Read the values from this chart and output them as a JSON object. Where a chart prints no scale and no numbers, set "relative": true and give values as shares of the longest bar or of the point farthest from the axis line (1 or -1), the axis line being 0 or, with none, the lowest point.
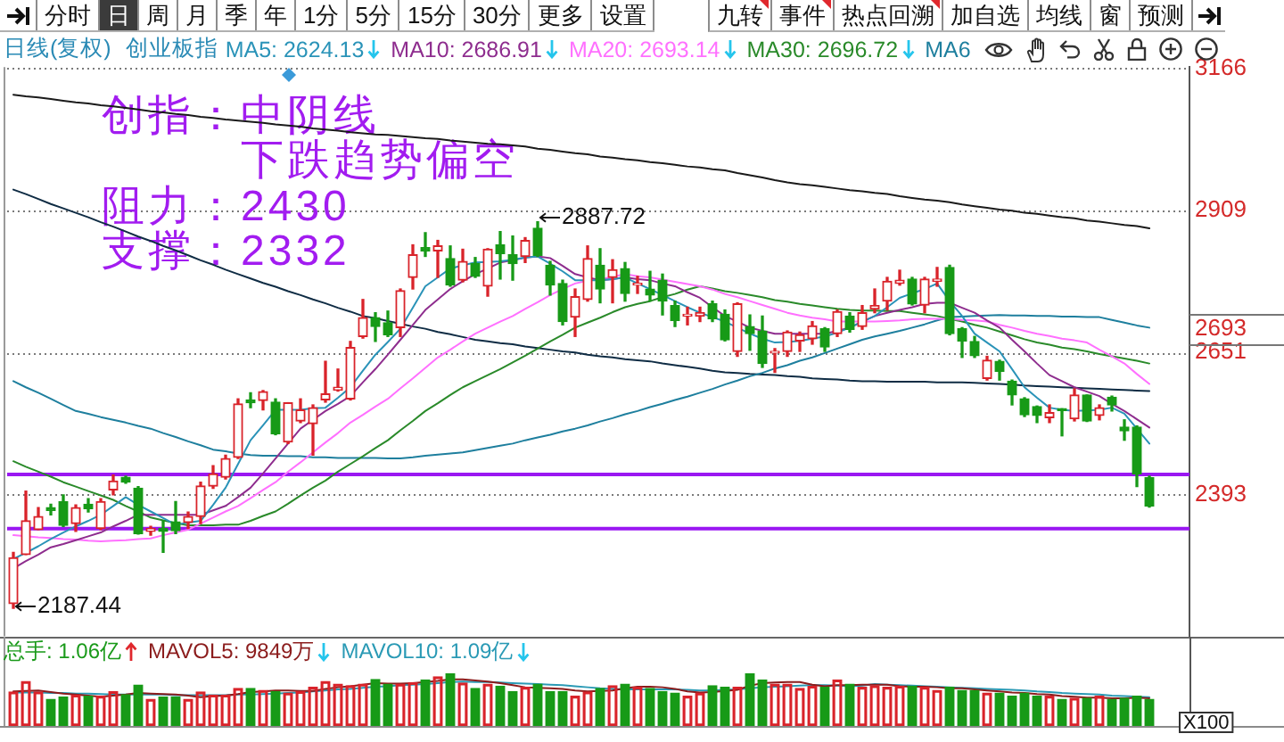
{
  "chart_data": [
    {
      "type": "candlestick",
      "title": "创业板指",
      "subtitle": "日线(复权)",
      "categories": [
        null,
        null,
        null,
        null,
        null,
        null,
        null,
        null,
        null,
        null,
        null,
        null,
        null,
        null,
        null,
        null,
        null,
        null,
        null,
        null,
        null,
        null,
        null,
        null,
        null,
        null,
        null,
        null,
        null,
        null,
        null,
        null,
        null,
        null,
        null,
        null,
        null,
        null,
        null,
        null,
        null,
        null,
        null,
        null,
        null,
        null,
        null,
        null,
        null,
        null,
        null,
        null,
        null,
        null,
        null,
        null,
        null,
        null,
        null,
        null,
        null,
        null,
        null,
        null,
        null,
        null,
        null,
        null,
        null,
        null,
        null,
        null,
        null,
        null,
        null,
        null,
        null,
        null,
        null,
        null,
        null,
        null,
        null,
        null,
        null,
        null,
        null,
        null,
        null,
        null,
        null,
        null
      ],
      "ohlc": [
        [
          2196,
          2289,
          2187.44,
          2279
        ],
        [
          2285,
          2400,
          2285,
          2346
        ],
        [
          2330,
          2370,
          2330,
          2354
        ],
        [
          2370,
          2376,
          2357,
          2365
        ],
        [
          2381,
          2393,
          2336,
          2338
        ],
        [
          2341,
          2375,
          2327,
          2370
        ],
        [
          2376,
          2386,
          2362,
          2368
        ],
        [
          2332,
          2386,
          2330,
          2381
        ],
        [
          2402,
          2429,
          2393,
          2418
        ],
        [
          2425,
          2427,
          2414,
          2416
        ],
        [
          2405,
          2408,
          2322,
          2323
        ],
        [
          2327,
          2336,
          2320,
          2332
        ],
        [
          2332,
          2346,
          2289,
          2327
        ],
        [
          2344,
          2381,
          2323,
          2328
        ],
        [
          2343,
          2362,
          2332,
          2354
        ],
        [
          2354,
          2416,
          2341,
          2409
        ],
        [
          2409,
          2446,
          2405,
          2431
        ],
        [
          2425,
          2465,
          2422,
          2459
        ],
        [
          2461,
          2567,
          2459,
          2558
        ],
        [
          2565,
          2578,
          2551,
          2560
        ],
        [
          2564,
          2582,
          2547,
          2580
        ],
        [
          2561,
          2567,
          2502,
          2504
        ],
        [
          2489,
          2560,
          2486,
          2560
        ],
        [
          2527,
          2567,
          2524,
          2547
        ],
        [
          2522,
          2556,
          2465,
          2551
        ],
        [
          2565,
          2635,
          2561,
          2576
        ],
        [
          2583,
          2621,
          2581,
          2588
        ],
        [
          2567,
          2671,
          2565,
          2660
        ],
        [
          2680,
          2747,
          2677,
          2714
        ],
        [
          2714,
          2723,
          2671,
          2698
        ],
        [
          2705,
          2726,
          2680,
          2683
        ],
        [
          2696,
          2766,
          2680,
          2763
        ],
        [
          2787,
          2846,
          2766,
          2828
        ],
        [
          2841,
          2868,
          2825,
          2835
        ],
        [
          2835,
          2854,
          2787,
          2844
        ],
        [
          2821,
          2844,
          2771,
          2773
        ],
        [
          2782,
          2838,
          2779,
          2816
        ],
        [
          2812,
          2823,
          2787,
          2789
        ],
        [
          2771,
          2839,
          2753,
          2838
        ],
        [
          2846,
          2870,
          2784,
          2830
        ],
        [
          2828,
          2862,
          2782,
          2812
        ],
        [
          2825,
          2859,
          2814,
          2854
        ],
        [
          2876,
          2887.72,
          2825,
          2827
        ],
        [
          2809,
          2816,
          2755,
          2773
        ],
        [
          2776,
          2782,
          2701,
          2707
        ],
        [
          2715,
          2766,
          2680,
          2752
        ],
        [
          2747,
          2844,
          2744,
          2821
        ],
        [
          2809,
          2839,
          2741,
          2766
        ],
        [
          2787,
          2819,
          2741,
          2801
        ],
        [
          2803,
          2814,
          2744,
          2758
        ],
        [
          2773,
          2789,
          2758,
          2776
        ],
        [
          2766,
          2798,
          2744,
          2755
        ],
        [
          2782,
          2793,
          2719,
          2744
        ],
        [
          2736,
          2744,
          2698,
          2709
        ],
        [
          2717,
          2733,
          2701,
          2719
        ],
        [
          2717,
          2733,
          2707,
          2723
        ],
        [
          2739,
          2744,
          2707,
          2712
        ],
        [
          2720,
          2728,
          2672,
          2674
        ],
        [
          2653,
          2741,
          2644,
          2739
        ],
        [
          2698,
          2719,
          2655,
          2685
        ],
        [
          2690,
          2717,
          2624,
          2631
        ],
        [
          2650,
          2658,
          2615,
          2653
        ],
        [
          2653,
          2690,
          2644,
          2688
        ],
        [
          2672,
          2688,
          2653,
          2683
        ],
        [
          2676,
          2707,
          2666,
          2699
        ],
        [
          2694,
          2696,
          2653,
          2661
        ],
        [
          2685,
          2728,
          2680,
          2725
        ],
        [
          2717,
          2723,
          2688,
          2693
        ],
        [
          2698,
          2736,
          2693,
          2723
        ],
        [
          2730,
          2766,
          2723,
          2736
        ],
        [
          2744,
          2787,
          2728,
          2780
        ],
        [
          2776,
          2800,
          2773,
          2782
        ],
        [
          2784,
          2787,
          2737,
          2739
        ],
        [
          2737,
          2787,
          2723,
          2784
        ],
        [
          2780,
          2805,
          2771,
          2784
        ],
        [
          2805,
          2809,
          2683,
          2685
        ],
        [
          2694,
          2696,
          2642,
          2672
        ],
        [
          2671,
          2680,
          2642,
          2645
        ],
        [
          2604,
          2644,
          2601,
          2637
        ],
        [
          2635,
          2637,
          2601,
          2617
        ],
        [
          2599,
          2601,
          2556,
          2574
        ],
        [
          2567,
          2569,
          2535,
          2538
        ],
        [
          2553,
          2554,
          2524,
          2537
        ],
        [
          2533,
          2556,
          2524,
          2542
        ],
        [
          2548,
          2549,
          2500,
          2546
        ],
        [
          2531,
          2585,
          2527,
          2574
        ],
        [
          2574,
          2574,
          2526,
          2527
        ],
        [
          2537,
          2556,
          2529,
          2551
        ],
        [
          2570,
          2572,
          2545,
          2556
        ],
        [
          2516,
          2529,
          2492,
          2509
        ],
        [
          2516,
          2518,
          2408,
          2431
        ],
        [
          2424,
          2427,
          2371,
          2373
        ]
      ],
      "colors": [
        "#d9232a",
        "#d9232a",
        "#d9232a",
        "#179a17",
        "#179a17",
        "#d9232a",
        "#179a17",
        "#d9232a",
        "#d9232a",
        "#179a17",
        "#179a17",
        "#d9232a",
        "#179a17",
        "#179a17",
        "#d9232a",
        "#d9232a",
        "#d9232a",
        "#d9232a",
        "#d9232a",
        "#179a17",
        "#d9232a",
        "#179a17",
        "#d9232a",
        "#d9232a",
        "#d9232a",
        "#d9232a",
        "#d9232a",
        "#d9232a",
        "#d9232a",
        "#179a17",
        "#179a17",
        "#d9232a",
        "#d9232a",
        "#179a17",
        "#d9232a",
        "#179a17",
        "#d9232a",
        "#179a17",
        "#d9232a",
        "#179a17",
        "#179a17",
        "#d9232a",
        "#179a17",
        "#179a17",
        "#179a17",
        "#d9232a",
        "#d9232a",
        "#179a17",
        "#d9232a",
        "#179a17",
        "#d9232a",
        "#179a17",
        "#179a17",
        "#179a17",
        "#d9232a",
        "#d9232a",
        "#179a17",
        "#179a17",
        "#d9232a",
        "#179a17",
        "#179a17",
        "#d9232a",
        "#d9232a",
        "#d9232a",
        "#d9232a",
        "#179a17",
        "#d9232a",
        "#179a17",
        "#d9232a",
        "#d9232a",
        "#d9232a",
        "#d9232a",
        "#179a17",
        "#d9232a",
        "#d9232a",
        "#179a17",
        "#179a17",
        "#179a17",
        "#d9232a",
        "#179a17",
        "#179a17",
        "#179a17",
        "#179a17",
        "#d9232a",
        "#179a17",
        "#d9232a",
        "#179a17",
        "#d9232a",
        "#179a17",
        "#179a17",
        "#179a17",
        "#179a17"
      ],
      "series": [
        {
          "name": "MA5: 2624.13",
          "type": "line",
          "color": "#2a93b8",
          "values": [
            2277,
            2288,
            2300,
            2313,
            2325,
            2336,
            2346,
            2357,
            2373,
            2389,
            2375,
            2363,
            2351,
            2339,
            2343,
            2346,
            2375,
            2406,
            2449,
            2492,
            2519,
            2547,
            2547,
            2547,
            2550,
            2551,
            2569,
            2588,
            2618,
            2647,
            2670,
            2694,
            2732,
            2771,
            2787,
            2803,
            2809,
            2814,
            2815,
            2816,
            2819,
            2823,
            2825,
            2812,
            2798,
            2782,
            2782,
            2782,
            2784,
            2787,
            2776,
            2766,
            2755,
            2744,
            2733,
            2723,
            2715,
            2707,
            2696,
            2685,
            2676,
            2669,
            2670,
            2672,
            2676,
            2680,
            2687,
            2696,
            2707,
            2717,
            2733,
            2750,
            2758,
            2766,
            2776,
            2744,
            2717,
            2685,
            2669,
            2653,
            2621,
            2588,
            2569,
            2551,
            2547,
            2545,
            2546,
            2547,
            2551,
            2540,
            2513,
            2486
          ]
        },
        {
          "name": "MA10: 2686.91",
          "type": "line",
          "color": "#8e2d8e",
          "values": [
            2260,
            2273,
            2285,
            2298,
            2304,
            2311,
            2318,
            2325,
            2336,
            2346,
            2357,
            2357,
            2357,
            2357,
            2357,
            2357,
            2365,
            2373,
            2389,
            2406,
            2432,
            2459,
            2486,
            2513,
            2529,
            2545,
            2558,
            2572,
            2597,
            2621,
            2647,
            2674,
            2701,
            2728,
            2747,
            2766,
            2780,
            2793,
            2803,
            2814,
            2818,
            2823,
            2825,
            2822,
            2808,
            2793,
            2787,
            2782,
            2784,
            2787,
            2784,
            2782,
            2776,
            2771,
            2760,
            2750,
            2733,
            2717,
            2707,
            2696,
            2690,
            2685,
            2685,
            2685,
            2685,
            2685,
            2690,
            2696,
            2707,
            2717,
            2723,
            2728,
            2733,
            2739,
            2741,
            2741,
            2732,
            2723,
            2709,
            2696,
            2674,
            2653,
            2631,
            2610,
            2599,
            2588,
            2580,
            2572,
            2558,
            2545,
            2530,
            2515
          ]
        },
        {
          "name": "MA20: 2693.14",
          "type": "line",
          "color": "#ff70ff",
          "values": [
            2320,
            2318,
            2316,
            2315,
            2313,
            2312,
            2310,
            2309,
            2310,
            2311,
            2313,
            2314,
            2320,
            2325,
            2330,
            2341,
            2352,
            2363,
            2373,
            2387,
            2402,
            2416,
            2435,
            2452,
            2470,
            2488,
            2505,
            2524,
            2538,
            2553,
            2567,
            2586,
            2604,
            2623,
            2642,
            2656,
            2671,
            2685,
            2696,
            2707,
            2717,
            2730,
            2742,
            2755,
            2766,
            2776,
            2781,
            2784,
            2788,
            2793,
            2789,
            2787,
            2783,
            2779,
            2775,
            2771,
            2765,
            2757,
            2751,
            2744,
            2737,
            2730,
            2723,
            2718,
            2714,
            2711,
            2707,
            2707,
            2707,
            2707,
            2708,
            2709,
            2711,
            2712,
            2712,
            2712,
            2710,
            2709,
            2707,
            2701,
            2696,
            2690,
            2685,
            2681,
            2676,
            2673,
            2669,
            2656,
            2644,
            2631,
            2612,
            2594
          ]
        },
        {
          "name": "MA30: 2696.72",
          "type": "line",
          "color": "#2a8a2a",
          "values": [
            2454,
            2444,
            2435,
            2426,
            2416,
            2408,
            2400,
            2392,
            2384,
            2373,
            2363,
            2352,
            2347,
            2342,
            2338,
            2338,
            2338,
            2339,
            2339,
            2346,
            2355,
            2363,
            2377,
            2392,
            2406,
            2419,
            2435,
            2449,
            2463,
            2478,
            2492,
            2510,
            2527,
            2545,
            2559,
            2574,
            2588,
            2599,
            2610,
            2621,
            2633,
            2645,
            2658,
            2671,
            2683,
            2696,
            2705,
            2714,
            2724,
            2733,
            2739,
            2744,
            2751,
            2757,
            2765,
            2771,
            2767,
            2762,
            2759,
            2755,
            2751,
            2746,
            2743,
            2739,
            2736,
            2733,
            2730,
            2728,
            2727,
            2727,
            2726,
            2726,
            2723,
            2720,
            2717,
            2712,
            2707,
            2701,
            2696,
            2689,
            2682,
            2675,
            2669,
            2665,
            2660,
            2657,
            2653,
            2648,
            2644,
            2640,
            2636,
            2631
          ]
        },
        {
          "name": "MA6",
          "type": "line",
          "color": "#1e7f9e",
          "values": [
            2599,
            2588,
            2578,
            2567,
            2556,
            2545,
            2540,
            2534,
            2529,
            2524,
            2518,
            2513,
            2505,
            2498,
            2490,
            2483,
            2475,
            2472,
            2468,
            2465,
            2464,
            2464,
            2463,
            2463,
            2461,
            2461,
            2460,
            2460,
            2460,
            2460,
            2459,
            2459,
            2461,
            2464,
            2466,
            2468,
            2470,
            2474,
            2478,
            2482,
            2486,
            2492,
            2497,
            2502,
            2508,
            2513,
            2519,
            2526,
            2532,
            2539,
            2545,
            2552,
            2558,
            2565,
            2571,
            2578,
            2585,
            2593,
            2600,
            2608,
            2614,
            2622,
            2628,
            2636,
            2642,
            2650,
            2658,
            2666,
            2674,
            2680,
            2685,
            2690,
            2696,
            2702,
            2709,
            2715,
            2716,
            2717,
            2718,
            2719,
            2718,
            2718,
            2717,
            2717,
            2716,
            2716,
            2715,
            2715,
            2710,
            2705,
            2700,
            2696
          ]
        },
        {
          "type": "line",
          "color": "#0f2c44",
          "values": [
            2946,
            2938,
            2929,
            2920,
            2912,
            2904,
            2896,
            2887,
            2879,
            2870,
            2861,
            2853,
            2844,
            2836,
            2827,
            2818,
            2810,
            2801,
            2793,
            2785,
            2777,
            2770,
            2762,
            2755,
            2747,
            2740,
            2732,
            2725,
            2717,
            2713,
            2708,
            2703,
            2698,
            2694,
            2688,
            2684,
            2679,
            2674,
            2671,
            2668,
            2666,
            2662,
            2659,
            2656,
            2653,
            2651,
            2647,
            2644,
            2642,
            2639,
            2637,
            2635,
            2631,
            2628,
            2625,
            2622,
            2618,
            2615,
            2614,
            2612,
            2611,
            2610,
            2608,
            2607,
            2604,
            2603,
            2602,
            2600,
            2599,
            2599,
            2598,
            2598,
            2598,
            2598,
            2597,
            2597,
            2597,
            2596,
            2595,
            2594,
            2593,
            2591,
            2590,
            2589,
            2588,
            2587,
            2586,
            2585,
            2584,
            2583,
            2582,
            2581
          ]
        },
        {
          "type": "line",
          "color": "#1a1a1a",
          "values": [
            3118,
            3115,
            3113,
            3110,
            3107,
            3104,
            3102,
            3099,
            3097,
            3094,
            3091,
            3088,
            3086,
            3083,
            3081,
            3078,
            3076,
            3073,
            3071,
            3069,
            3067,
            3064,
            3062,
            3060,
            3057,
            3055,
            3053,
            3050,
            3048,
            3046,
            3045,
            3043,
            3041,
            3039,
            3038,
            3035,
            3033,
            3031,
            3029,
            3028,
            3026,
            3024,
            3020,
            3018,
            3015,
            3012,
            3010,
            3006,
            3004,
            3001,
            2999,
            2996,
            2994,
            2991,
            2988,
            2986,
            2983,
            2981,
            2976,
            2972,
            2968,
            2963,
            2959,
            2956,
            2954,
            2951,
            2948,
            2945,
            2943,
            2940,
            2938,
            2934,
            2931,
            2928,
            2926,
            2923,
            2919,
            2916,
            2913,
            2910,
            2908,
            2904,
            2902,
            2899,
            2896,
            2894,
            2890,
            2888,
            2885,
            2882,
            2880,
            2876
          ]
        }
      ],
      "ylim": [
        2137,
        3168
      ],
      "yticks": [
        3166,
        2909,
        2693,
        2651,
        2393
      ],
      "grid": "y",
      "legend": "top left",
      "ref_lines": [
        {
          "axis": "y",
          "value": 2430,
          "color": "#9a17f2"
        },
        {
          "axis": "y",
          "value": 2332,
          "color": "#9a17f2"
        }
      ],
      "annotations": [
        "分时",
        "日",
        "周",
        "月",
        "季",
        "年",
        "1分",
        "5分",
        "15分",
        "30分",
        "更多",
        "设置",
        "九转",
        "事件",
        "热点回溯",
        "加自选",
        "均线",
        "窗",
        "预测",
        "创指：中阴线",
        "下跌趋势偏空",
        "阻力：2430",
        "支撑：2332",
        "2887.72",
        "2187.44"
      ]
    },
    {
      "type": "bar",
      "relative": true,
      "categories": [
        null,
        null,
        null,
        null,
        null,
        null,
        null,
        null,
        null,
        null,
        null,
        null,
        null,
        null,
        null,
        null,
        null,
        null,
        null,
        null,
        null,
        null,
        null,
        null,
        null,
        null,
        null,
        null,
        null,
        null,
        null,
        null,
        null,
        null,
        null,
        null,
        null,
        null,
        null,
        null,
        null,
        null,
        null,
        null,
        null,
        null,
        null,
        null,
        null,
        null,
        null,
        null,
        null,
        null,
        null,
        null,
        null,
        null,
        null,
        null,
        null,
        null,
        null,
        null,
        null,
        null,
        null,
        null,
        null,
        null,
        null,
        null,
        null,
        null,
        null,
        null,
        null,
        null,
        null,
        null,
        null,
        null,
        null,
        null,
        null,
        null,
        null,
        null,
        null,
        null,
        null,
        null
      ],
      "series": [
        {
          "name": "总手: 1.06亿",
          "color": "#1a9a1a",
          "colors": [
            "#d9232a",
            "#d9232a",
            "#d9232a",
            "#179a17",
            "#179a17",
            "#d9232a",
            "#179a17",
            "#d9232a",
            "#d9232a",
            "#179a17",
            "#179a17",
            "#d9232a",
            "#179a17",
            "#179a17",
            "#d9232a",
            "#d9232a",
            "#d9232a",
            "#d9232a",
            "#d9232a",
            "#179a17",
            "#d9232a",
            "#179a17",
            "#d9232a",
            "#d9232a",
            "#d9232a",
            "#d9232a",
            "#d9232a",
            "#d9232a",
            "#d9232a",
            "#179a17",
            "#179a17",
            "#d9232a",
            "#d9232a",
            "#179a17",
            "#d9232a",
            "#179a17",
            "#d9232a",
            "#179a17",
            "#d9232a",
            "#179a17",
            "#179a17",
            "#d9232a",
            "#179a17",
            "#179a17",
            "#179a17",
            "#d9232a",
            "#d9232a",
            "#179a17",
            "#d9232a",
            "#179a17",
            "#d9232a",
            "#179a17",
            "#179a17",
            "#179a17",
            "#d9232a",
            "#d9232a",
            "#179a17",
            "#179a17",
            "#d9232a",
            "#179a17",
            "#179a17",
            "#d9232a",
            "#d9232a",
            "#d9232a",
            "#d9232a",
            "#179a17",
            "#d9232a",
            "#179a17",
            "#d9232a",
            "#d9232a",
            "#d9232a",
            "#d9232a",
            "#179a17",
            "#d9232a",
            "#d9232a",
            "#179a17",
            "#179a17",
            "#179a17",
            "#d9232a",
            "#179a17",
            "#179a17",
            "#179a17",
            "#179a17",
            "#d9232a",
            "#179a17",
            "#d9232a",
            "#179a17",
            "#d9232a",
            "#179a17",
            "#179a17",
            "#179a17",
            "#179a17"
          ],
          "values": [
            0.65,
            0.85,
            0.65,
            0.51,
            0.55,
            0.59,
            0.57,
            0.57,
            0.66,
            0.6,
            0.78,
            0.51,
            0.55,
            0.55,
            0.51,
            0.65,
            0.59,
            0.59,
            0.72,
            0.72,
            0.68,
            0.66,
            0.63,
            0.66,
            0.74,
            0.85,
            0.8,
            0.77,
            0.8,
            0.89,
            0.8,
            0.8,
            0.83,
            0.88,
            0.94,
            1,
            0.82,
            0.72,
            0.8,
            0.76,
            0.66,
            0.74,
            0.8,
            0.66,
            0.66,
            0.57,
            0.65,
            0.72,
            0.77,
            0.8,
            0.74,
            0.72,
            0.66,
            0.63,
            0.57,
            0.63,
            0.77,
            0.74,
            0.74,
            1,
            0.88,
            0.8,
            0.8,
            0.72,
            0.76,
            0.74,
            0.88,
            0.8,
            0.74,
            0.77,
            0.74,
            0.76,
            0.76,
            0.74,
            0.68,
            0.74,
            0.68,
            0.68,
            0.63,
            0.63,
            0.57,
            0.63,
            0.57,
            0.57,
            0.51,
            0.53,
            0.53,
            0.57,
            0.51,
            0.53,
            0.57,
            0.51
          ]
        },
        {
          "name": "MAVOL5: 9849万",
          "type": "line",
          "color": "#8b1c1c",
          "values": [
            0.66,
            0.67,
            0.68,
            0.65,
            0.62,
            0.6,
            0.58,
            0.56,
            0.58,
            0.6,
            0.63,
            0.62,
            0.61,
            0.6,
            0.58,
            0.55,
            0.57,
            0.58,
            0.61,
            0.65,
            0.66,
            0.68,
            0.68,
            0.67,
            0.67,
            0.71,
            0.74,
            0.76,
            0.79,
            0.82,
            0.81,
            0.81,
            0.82,
            0.84,
            0.86,
            0.89,
            0.89,
            0.87,
            0.85,
            0.82,
            0.78,
            0.74,
            0.73,
            0.72,
            0.71,
            0.68,
            0.66,
            0.67,
            0.68,
            0.72,
            0.75,
            0.75,
            0.74,
            0.71,
            0.66,
            0.64,
            0.65,
            0.67,
            0.69,
            0.77,
            0.82,
            0.83,
            0.84,
            0.84,
            0.79,
            0.76,
            0.78,
            0.78,
            0.79,
            0.79,
            0.79,
            0.76,
            0.75,
            0.75,
            0.74,
            0.72,
            0.72,
            0.7,
            0.68,
            0.66,
            0.64,
            0.63,
            0.61,
            0.6,
            0.57,
            0.56,
            0.54,
            0.54,
            0.53,
            0.53,
            0.54,
            0.53
          ]
        },
        {
          "name": "MAVOL10: 1.09亿",
          "type": "line",
          "color": "#2a9ab5",
          "values": [
            0.64,
            0.64,
            0.64,
            0.63,
            0.63,
            0.62,
            0.62,
            0.61,
            0.6,
            0.6,
            0.6,
            0.6,
            0.6,
            0.59,
            0.59,
            0.59,
            0.59,
            0.59,
            0.6,
            0.6,
            0.61,
            0.62,
            0.63,
            0.64,
            0.66,
            0.68,
            0.7,
            0.71,
            0.73,
            0.75,
            0.76,
            0.78,
            0.79,
            0.8,
            0.82,
            0.84,
            0.85,
            0.84,
            0.84,
            0.83,
            0.82,
            0.81,
            0.8,
            0.79,
            0.78,
            0.76,
            0.74,
            0.72,
            0.71,
            0.7,
            0.7,
            0.7,
            0.7,
            0.7,
            0.69,
            0.68,
            0.68,
            0.69,
            0.7,
            0.72,
            0.74,
            0.75,
            0.76,
            0.77,
            0.78,
            0.78,
            0.77,
            0.76,
            0.77,
            0.8,
            0.79,
            0.78,
            0.77,
            0.76,
            0.75,
            0.74,
            0.73,
            0.72,
            0.71,
            0.7,
            0.69,
            0.68,
            0.66,
            0.65,
            0.63,
            0.62,
            0.61,
            0.6,
            0.58,
            0.57,
            0.56,
            0.55
          ]
        }
      ],
      "legend": "top left",
      "annotations": [
        "X100"
      ]
    }
  ]
}
